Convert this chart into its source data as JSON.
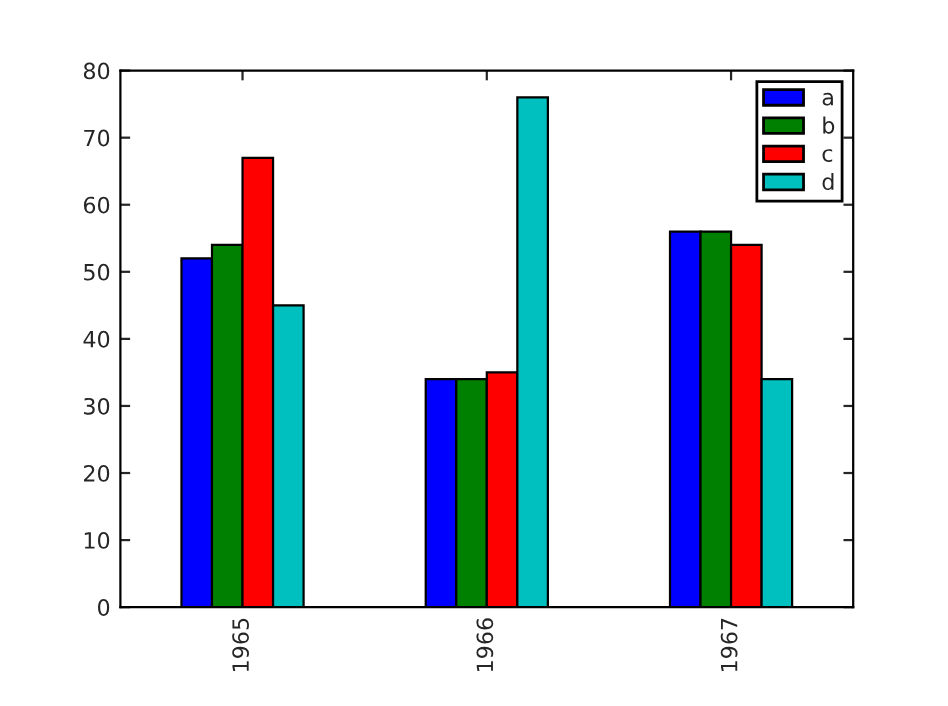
{
  "chart_data": {
    "type": "bar",
    "categories": [
      "1965",
      "1966",
      "1967"
    ],
    "series": [
      {
        "name": "a",
        "color": "#0000ff",
        "values": [
          52,
          34,
          56
        ]
      },
      {
        "name": "b",
        "color": "#008000",
        "values": [
          54,
          34,
          56
        ]
      },
      {
        "name": "c",
        "color": "#ff0000",
        "values": [
          67,
          35,
          54
        ]
      },
      {
        "name": "d",
        "color": "#00bfbf",
        "values": [
          45,
          76,
          34
        ]
      }
    ],
    "ylim": [
      0,
      80
    ],
    "yticks": [
      0,
      10,
      20,
      30,
      40,
      50,
      60,
      70,
      80
    ],
    "grid": false,
    "legend": "top right"
  }
}
